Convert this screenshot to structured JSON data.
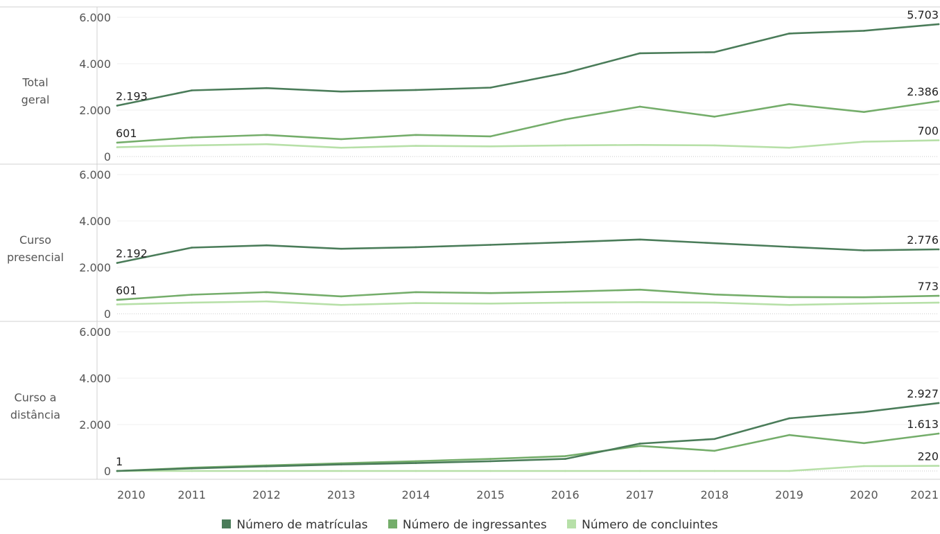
{
  "chart_data": {
    "type": "line",
    "categories": [
      "2010",
      "2011",
      "2012",
      "2013",
      "2014",
      "2015",
      "2016",
      "2017",
      "2018",
      "2019",
      "2020",
      "2021"
    ],
    "y_ticks": [
      "0",
      "2.000",
      "4.000",
      "6.000"
    ],
    "ylim": [
      0,
      6300
    ],
    "grid": true,
    "legend_position": "bottom-center",
    "series_names": [
      "Número de matrículas",
      "Número de ingressantes",
      "Número de concluintes"
    ],
    "series_colors": [
      "#4a7c59",
      "#74ad6a",
      "#b7e0a8"
    ],
    "panels": [
      {
        "label_lines": [
          "Total",
          "geral"
        ],
        "series": [
          {
            "name": "Número de matrículas",
            "values": [
              2193,
              2850,
              2950,
              2800,
              2870,
              2970,
              3600,
              4450,
              4500,
              5300,
              5420,
              5703
            ]
          },
          {
            "name": "Número de ingressantes",
            "values": [
              601,
              820,
              930,
              750,
              930,
              870,
              1600,
              2150,
              1720,
              2260,
              1920,
              2386
            ]
          },
          {
            "name": "Número de concluintes",
            "values": [
              400,
              480,
              530,
              380,
              460,
              440,
              480,
              500,
              480,
              380,
              640,
              700
            ]
          }
        ],
        "labels": [
          {
            "series": 0,
            "index": 0,
            "text": "2.193"
          },
          {
            "series": 1,
            "index": 0,
            "text": "601"
          },
          {
            "series": 0,
            "index": 11,
            "text": "5.703"
          },
          {
            "series": 1,
            "index": 11,
            "text": "2.386"
          },
          {
            "series": 2,
            "index": 11,
            "text": "700"
          }
        ]
      },
      {
        "label_lines": [
          "Curso",
          "presencial"
        ],
        "series": [
          {
            "name": "Número de matrículas",
            "values": [
              2192,
              2850,
              2950,
              2800,
              2870,
              2970,
              3080,
              3200,
              3040,
              2880,
              2730,
              2776
            ]
          },
          {
            "name": "Número de ingressantes",
            "values": [
              601,
              820,
              930,
              750,
              930,
              890,
              950,
              1040,
              830,
              720,
              710,
              773
            ]
          },
          {
            "name": "Número de concluintes",
            "values": [
              400,
              480,
              530,
              380,
              460,
              440,
              480,
              500,
              480,
              380,
              440,
              480
            ]
          }
        ],
        "labels": [
          {
            "series": 0,
            "index": 0,
            "text": "2.192"
          },
          {
            "series": 1,
            "index": 0,
            "text": "601"
          },
          {
            "series": 0,
            "index": 11,
            "text": "2.776"
          },
          {
            "series": 1,
            "index": 11,
            "text": "773"
          }
        ]
      },
      {
        "label_lines": [
          "Curso a",
          "distância"
        ],
        "series": [
          {
            "name": "Número de matrículas",
            "values": [
              1,
              110,
              200,
              280,
              340,
              420,
              520,
              1180,
              1380,
              2270,
              2540,
              2927
            ]
          },
          {
            "name": "Número de ingressantes",
            "values": [
              1,
              140,
              240,
              330,
              420,
              520,
              640,
              1080,
              870,
              1550,
              1200,
              1613
            ]
          },
          {
            "name": "Número de concluintes",
            "values": [
              0,
              0,
              0,
              0,
              0,
              0,
              0,
              0,
              0,
              0,
              210,
              220
            ]
          }
        ],
        "labels": [
          {
            "series": 0,
            "index": 0,
            "text": "1"
          },
          {
            "series": 0,
            "index": 11,
            "text": "2.927"
          },
          {
            "series": 1,
            "index": 11,
            "text": "1.613"
          },
          {
            "series": 2,
            "index": 11,
            "text": "220"
          }
        ]
      }
    ]
  }
}
